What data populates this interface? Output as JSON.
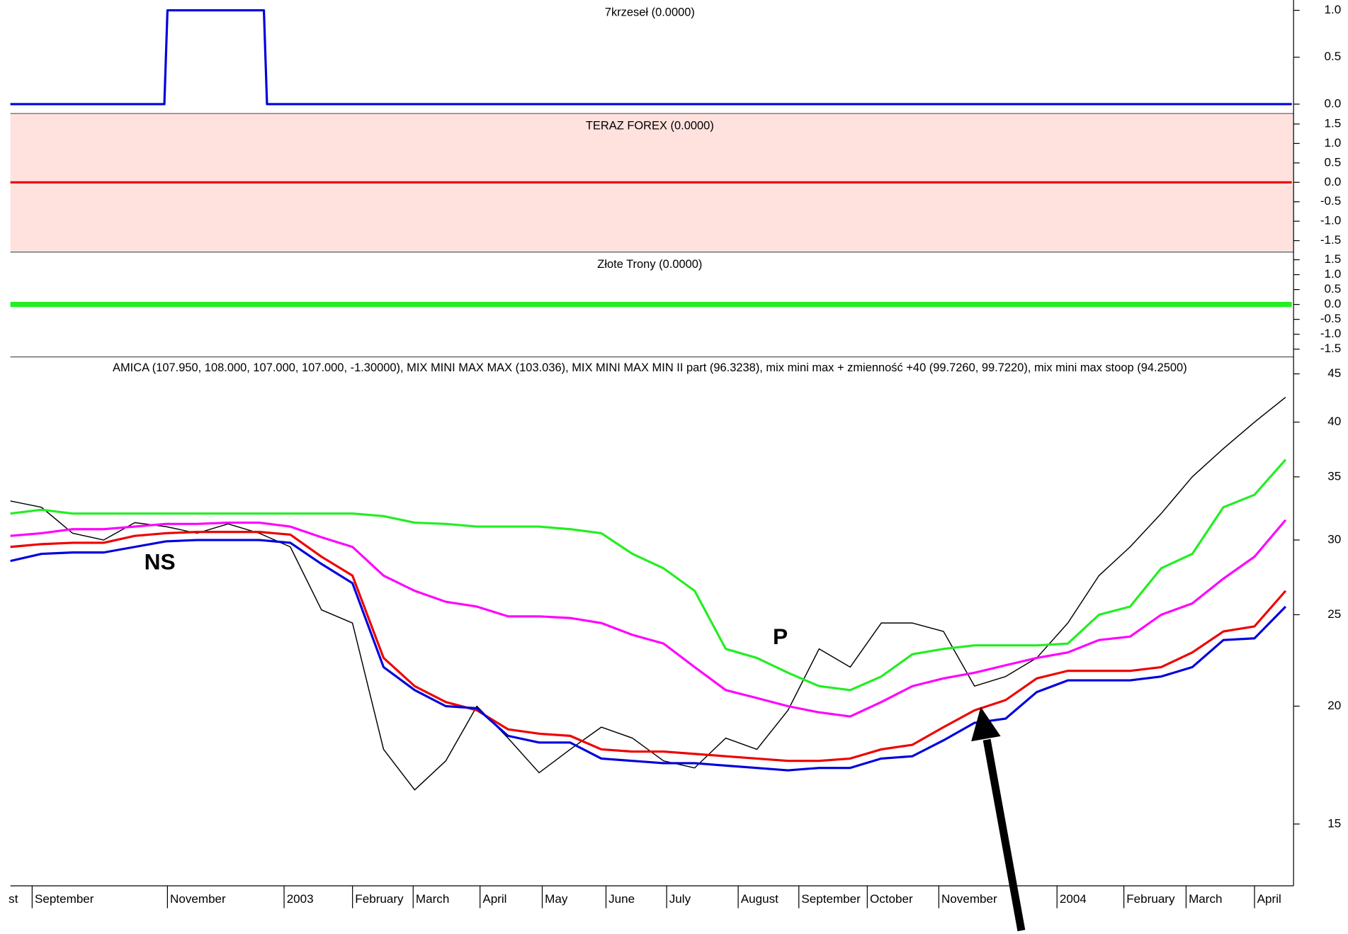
{
  "chart_data": [
    {
      "type": "line",
      "title": "7krzeseł (0.0000)",
      "ylim": [
        -0.1,
        1.11
      ],
      "yticks": [
        {
          "value": 0,
          "label": "0.0"
        },
        0.5,
        {
          "value": 1,
          "label": "1.0"
        }
      ],
      "xlim": [
        0,
        82.4
      ],
      "x": [
        0,
        9.9,
        10.1,
        16.3,
        16.5,
        82.4
      ],
      "series": [
        {
          "name": "7krzeseł",
          "color": "#0000dd",
          "values": [
            0,
            0,
            1,
            1,
            0,
            0
          ]
        }
      ]
    },
    {
      "type": "line",
      "title": "TERAZ FOREX (0.0000)",
      "ylim": [
        -1.77,
        1.77
      ],
      "background": "#ffe2de",
      "yticks": [
        -1.5,
        {
          "value": -1,
          "label": "-1.0"
        },
        -0.5,
        {
          "value": 0,
          "label": "0.0"
        },
        0.5,
        {
          "value": 1,
          "label": "1.0"
        },
        1.5
      ],
      "xlim": [
        0,
        82.4
      ],
      "x": [
        0,
        82.4
      ],
      "series": [
        {
          "name": "TERAZ FOREX",
          "color": "#ee0000",
          "values": [
            0,
            0
          ]
        }
      ]
    },
    {
      "type": "line",
      "title": "Złote Trony (0.0000)",
      "ylim": [
        -1.76,
        1.76
      ],
      "yticks": [
        -1.5,
        {
          "value": -1,
          "label": "-1.0"
        },
        -0.5,
        {
          "value": 0,
          "label": "0.0"
        },
        0.5,
        {
          "value": 1,
          "label": "1.0"
        },
        1.5
      ],
      "xlim": [
        0,
        82.4
      ],
      "x": [
        0,
        82.4
      ],
      "series": [
        {
          "name": "Złote Trony",
          "color": "#22ee22",
          "values": [
            0,
            0
          ]
        }
      ]
    },
    {
      "type": "line",
      "title": "AMICA (107.950, 108.000, 107.000, 107.000, -1.30000), MIX MINI MAX MAX (103.036), MIX MINI MAX MIN II part (96.3238), mix mini max + zmienność +40 (99.7260, 99.7220), mix mini max stoop (94.2500)",
      "log_scale": true,
      "ylim": [
        12.9,
        46.9
      ],
      "yticks": [
        15,
        20,
        25,
        30,
        35,
        40,
        45
      ],
      "xlim": [
        0,
        82.4
      ],
      "xticks": [
        {
          "value": -1,
          "label": "st"
        },
        {
          "value": 1.4,
          "label": "September"
        },
        {
          "value": 10.1,
          "label": "November"
        },
        {
          "value": 17.6,
          "label": "2003"
        },
        {
          "value": 22,
          "label": "February"
        },
        {
          "value": 25.9,
          "label": "March"
        },
        {
          "value": 30.2,
          "label": "April"
        },
        {
          "value": 34.2,
          "label": "May"
        },
        {
          "value": 38.3,
          "label": "June"
        },
        {
          "value": 42.2,
          "label": "July"
        },
        {
          "value": 46.8,
          "label": "August"
        },
        {
          "value": 50.7,
          "label": "September"
        },
        {
          "value": 55.1,
          "label": "October"
        },
        {
          "value": 59.7,
          "label": "November"
        },
        {
          "value": 67.3,
          "label": "2004"
        },
        {
          "value": 71.6,
          "label": "February"
        },
        {
          "value": 75.6,
          "label": "March"
        },
        {
          "value": 80,
          "label": "April"
        }
      ],
      "annotations": [
        "NS",
        "P"
      ],
      "x": [
        0,
        2,
        4,
        6,
        8,
        10,
        12,
        14,
        16,
        18,
        20,
        22,
        24,
        26,
        28,
        30,
        32,
        34,
        36,
        38,
        40,
        42,
        44,
        46,
        48,
        50,
        52,
        54,
        56,
        58,
        60,
        62,
        64,
        66,
        68,
        70,
        72,
        74,
        76,
        78,
        80,
        82
      ],
      "series": [
        {
          "name": "AMICA",
          "color": "#000000",
          "values": [
            33,
            32.5,
            30.5,
            30,
            31.3,
            31,
            30.5,
            31.2,
            30.5,
            29.5,
            25.3,
            24.5,
            18,
            16.3,
            17.5,
            20,
            18.5,
            17,
            18,
            19,
            18.5,
            17.5,
            17.2,
            18.5,
            18,
            19.8,
            23,
            22,
            24.5,
            24.5,
            24,
            21,
            21.5,
            22.5,
            24.5,
            27.5,
            29.5,
            32,
            35,
            37.5,
            40,
            42.5
          ]
        },
        {
          "name": "MIX MINI MAX MAX",
          "color": "#22ee22",
          "values": [
            32,
            32.3,
            32,
            32,
            32,
            32,
            32,
            32,
            32,
            32,
            32,
            32,
            31.8,
            31.3,
            31.2,
            31,
            31,
            31,
            30.8,
            30.5,
            29,
            28,
            26.5,
            23,
            22.5,
            21.7,
            21,
            20.8,
            21.5,
            22.7,
            23,
            23.2,
            23.2,
            23.2,
            23.3,
            25,
            25.5,
            28,
            29,
            32.5,
            33.5,
            36.5
          ]
        },
        {
          "name": "MIX MINI MAX MIN II part",
          "color": "#ff00ff",
          "values": [
            30.3,
            30.5,
            30.8,
            30.8,
            31,
            31.2,
            31.2,
            31.3,
            31.3,
            31,
            30.2,
            29.5,
            27.5,
            26.5,
            25.8,
            25.5,
            24.9,
            24.9,
            24.8,
            24.5,
            23.8,
            23.3,
            22,
            20.8,
            20.4,
            20,
            19.7,
            19.5,
            20.2,
            21,
            21.4,
            21.7,
            22.1,
            22.5,
            22.8,
            23.5,
            23.7,
            25,
            25.7,
            27.3,
            28.8,
            31.5
          ]
        },
        {
          "name": "mix mini max + zmienność +40",
          "color": "#ee0000",
          "values": [
            29.5,
            29.7,
            29.8,
            29.8,
            30.3,
            30.5,
            30.6,
            30.6,
            30.6,
            30.4,
            28.8,
            27.5,
            22.5,
            21,
            20.2,
            19.8,
            18.9,
            18.7,
            18.6,
            18,
            17.9,
            17.9,
            17.8,
            17.7,
            17.6,
            17.5,
            17.5,
            17.6,
            18,
            18.2,
            19,
            19.8,
            20.3,
            21.4,
            21.8,
            21.8,
            21.8,
            22,
            22.8,
            24,
            24.3,
            26.5
          ]
        },
        {
          "name": "mix mini max stoop",
          "color": "#0000dd",
          "values": [
            28.5,
            29,
            29.1,
            29.1,
            29.5,
            29.9,
            30,
            30,
            30,
            29.8,
            28.3,
            27,
            22,
            20.8,
            20,
            19.9,
            18.6,
            18.3,
            18.3,
            17.6,
            17.5,
            17.4,
            17.4,
            17.3,
            17.2,
            17.1,
            17.2,
            17.2,
            17.6,
            17.7,
            18.4,
            19.2,
            19.4,
            20.7,
            21.3,
            21.3,
            21.3,
            21.5,
            22,
            23.5,
            23.6,
            25.5
          ]
        }
      ]
    }
  ]
}
